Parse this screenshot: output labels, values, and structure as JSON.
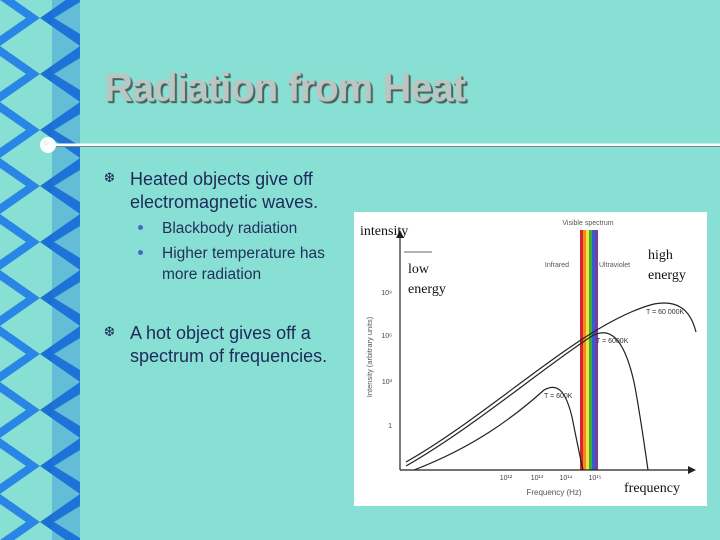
{
  "slide": {
    "title": "Radiation from Heat",
    "bullets": [
      {
        "text": "Heated objects give off electromagnetic waves."
      },
      {
        "text": "A hot object gives off a spectrum of frequencies."
      }
    ],
    "sub_bullets": [
      {
        "text": "Blackbody radiation"
      },
      {
        "text": "Higher temperature has more radiation"
      }
    ],
    "annotations": {
      "intensity": "intensity",
      "low_energy": "low energy",
      "high_energy": "high energy",
      "frequency": "frequency"
    }
  },
  "chart_data": {
    "type": "line",
    "xlabel": "Frequency (Hz)",
    "ylabel": "Intensity (arbitrary units)",
    "x_ticks": [
      "10¹²",
      "10¹³",
      "10¹⁴",
      "10¹⁵"
    ],
    "y_ticks": [
      "1",
      "10³",
      "10⁶",
      "10⁹"
    ],
    "regions": [
      "Infrared",
      "Visible spectrum",
      "Ultraviolet"
    ],
    "series": [
      {
        "name": "T = 60 000K"
      },
      {
        "name": "T = 6000K"
      },
      {
        "name": "T = 600K"
      }
    ],
    "colors": {
      "visible_bands": [
        "#d8262a",
        "#f08a24",
        "#f3e23a",
        "#3caa3c",
        "#2d62c8",
        "#7a3aa8"
      ]
    }
  }
}
